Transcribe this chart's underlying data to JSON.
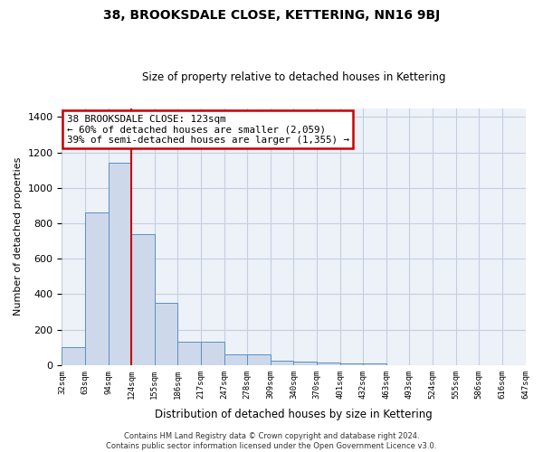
{
  "title": "38, BROOKSDALE CLOSE, KETTERING, NN16 9BJ",
  "subtitle": "Size of property relative to detached houses in Kettering",
  "xlabel": "Distribution of detached houses by size in Kettering",
  "ylabel": "Number of detached properties",
  "bar_values": [
    100,
    860,
    1140,
    740,
    350,
    130,
    130,
    60,
    60,
    25,
    20,
    15,
    10,
    10,
    0,
    0,
    0,
    0,
    0,
    0
  ],
  "bar_color": "#cdd9ea",
  "bar_edge_color": "#5b8fc2",
  "x_labels": [
    "32sqm",
    "63sqm",
    "94sqm",
    "124sqm",
    "155sqm",
    "186sqm",
    "217sqm",
    "247sqm",
    "278sqm",
    "309sqm",
    "340sqm",
    "370sqm",
    "401sqm",
    "432sqm",
    "463sqm",
    "493sqm",
    "524sqm",
    "555sqm",
    "586sqm",
    "616sqm",
    "647sqm"
  ],
  "ylim": [
    0,
    1450
  ],
  "yticks": [
    0,
    200,
    400,
    600,
    800,
    1000,
    1200,
    1400
  ],
  "property_line_x": 3.0,
  "property_line_color": "#cc0000",
  "annotation_text": "38 BROOKSDALE CLOSE: 123sqm\n← 60% of detached houses are smaller (2,059)\n39% of semi-detached houses are larger (1,355) →",
  "annotation_box_color": "#cc0000",
  "footer_text": "Contains HM Land Registry data © Crown copyright and database right 2024.\nContains public sector information licensed under the Open Government Licence v3.0.",
  "background_color": "#edf1f8",
  "grid_color": "#c5cfe0",
  "fig_width": 6.0,
  "fig_height": 5.0,
  "dpi": 100
}
